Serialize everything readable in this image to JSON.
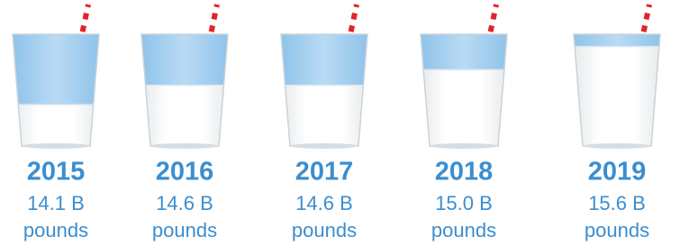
{
  "chart_data": {
    "type": "pictogram",
    "categories": [
      "2015",
      "2016",
      "2017",
      "2018",
      "2019"
    ],
    "values": [
      14.1,
      14.6,
      14.6,
      15.0,
      15.6
    ],
    "value_labels": [
      "14.1 B",
      "14.6 B",
      "14.6 B",
      "15.0 B",
      "15.6 B"
    ],
    "unit": "pounds",
    "color": "#3b8ed0"
  }
}
